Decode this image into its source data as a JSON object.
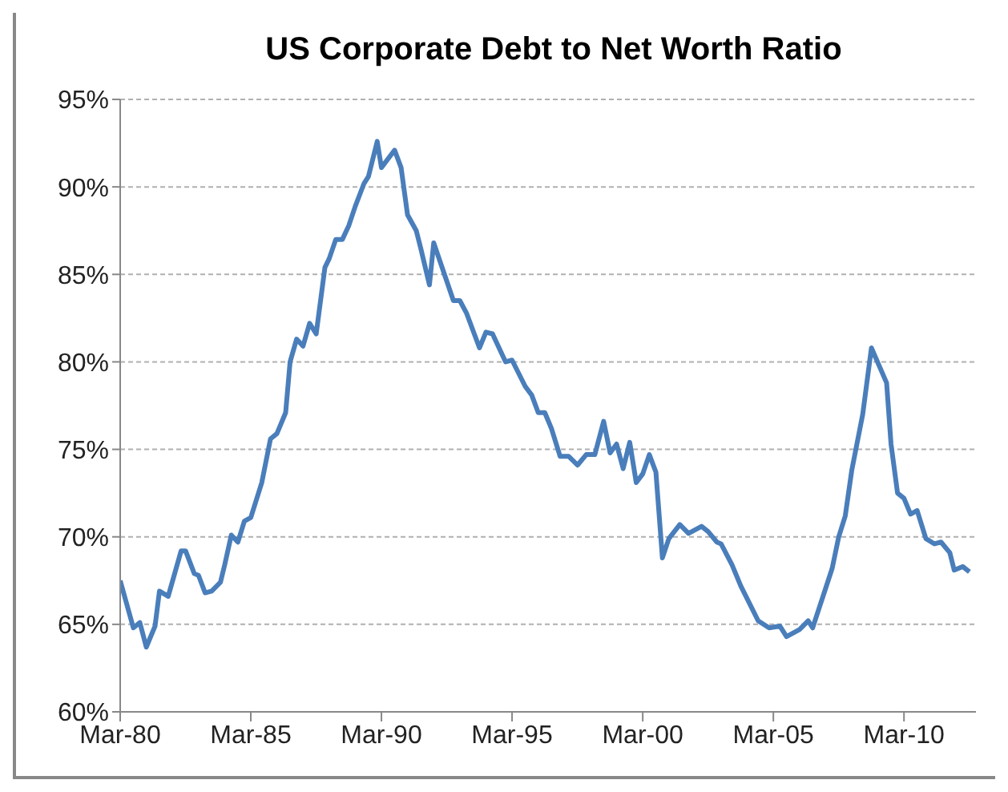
{
  "chart_data": {
    "type": "line",
    "title": "US Corporate Debt to Net Worth Ratio",
    "x": [
      "1980-03",
      "1980-09",
      "1980-12",
      "1981-03",
      "1981-07",
      "1981-09",
      "1982-01",
      "1982-07",
      "1982-09",
      "1983-01",
      "1983-03",
      "1983-06",
      "1983-09",
      "1984-01",
      "1984-03",
      "1984-06",
      "1984-09",
      "1984-12",
      "1985-03",
      "1985-08",
      "1985-12",
      "1986-03",
      "1986-07",
      "1986-09",
      "1986-12",
      "1987-03",
      "1987-06",
      "1987-09",
      "1988-01",
      "1988-03",
      "1988-06",
      "1988-09",
      "1988-12",
      "1989-03",
      "1989-07",
      "1989-09",
      "1990-01",
      "1990-03",
      "1990-09",
      "1990-12",
      "1991-03",
      "1991-07",
      "1991-09",
      "1992-01",
      "1992-03",
      "1992-12",
      "1993-03",
      "1993-06",
      "1993-12",
      "1994-03",
      "1994-06",
      "1994-12",
      "1995-03",
      "1995-09",
      "1995-12",
      "1996-03",
      "1996-06",
      "1996-09",
      "1997-01",
      "1997-05",
      "1997-09",
      "1998-01",
      "1998-05",
      "1998-09",
      "1998-12",
      "1999-03",
      "1999-06",
      "1999-09",
      "1999-12",
      "2000-03",
      "2000-06",
      "2000-09",
      "2000-12",
      "2001-03",
      "2001-08",
      "2001-12",
      "2002-06",
      "2002-09",
      "2003-01",
      "2003-03",
      "2003-08",
      "2003-12",
      "2004-08",
      "2005-01",
      "2005-06",
      "2005-09",
      "2006-03",
      "2006-07",
      "2006-09",
      "2007-02",
      "2007-06",
      "2007-09",
      "2007-12",
      "2008-03",
      "2008-08",
      "2008-12",
      "2009-07",
      "2009-09",
      "2009-12",
      "2010-03",
      "2010-06",
      "2010-09",
      "2011-01",
      "2011-05",
      "2011-08",
      "2011-12",
      "2012-02",
      "2012-06",
      "2012-09"
    ],
    "series": [
      {
        "color": "#4a7ebb",
        "values": [
          67.5,
          64.8,
          65.1,
          63.7,
          64.9,
          66.9,
          66.6,
          69.2,
          69.2,
          67.9,
          67.8,
          66.8,
          66.9,
          67.4,
          68.4,
          70.1,
          69.7,
          70.9,
          71.1,
          73.1,
          75.6,
          75.9,
          77.1,
          80.0,
          81.3,
          80.9,
          82.2,
          81.6,
          85.4,
          85.9,
          87.0,
          87.0,
          87.8,
          88.9,
          90.2,
          90.6,
          92.6,
          91.1,
          92.1,
          91.1,
          88.4,
          87.5,
          86.5,
          84.4,
          86.8,
          83.5,
          83.5,
          82.8,
          80.8,
          81.7,
          81.6,
          80.0,
          80.1,
          78.6,
          78.1,
          77.1,
          77.1,
          76.2,
          74.6,
          74.6,
          74.1,
          74.7,
          74.7,
          76.6,
          74.8,
          75.3,
          73.9,
          75.4,
          73.1,
          73.6,
          74.7,
          73.7,
          68.8,
          69.9,
          70.7,
          70.2,
          70.6,
          70.3,
          69.7,
          69.6,
          68.4,
          67.2,
          65.2,
          64.8,
          64.9,
          64.3,
          64.7,
          65.2,
          64.8,
          66.7,
          68.2,
          70.0,
          71.2,
          73.8,
          77.0,
          80.8,
          78.8,
          75.3,
          72.5,
          72.2,
          71.3,
          71.5,
          69.9,
          69.6,
          69.7,
          69.1,
          68.1,
          68.3,
          68.0
        ]
      }
    ],
    "xlim": [
      "1980-03",
      "2012-12"
    ],
    "xticks": [
      {
        "value": "1980-03",
        "label": "Mar-80"
      },
      {
        "value": "1985-03",
        "label": "Mar-85"
      },
      {
        "value": "1990-03",
        "label": "Mar-90"
      },
      {
        "value": "1995-03",
        "label": "Mar-95"
      },
      {
        "value": "2000-03",
        "label": "Mar-00"
      },
      {
        "value": "2005-03",
        "label": "Mar-05"
      },
      {
        "value": "2010-03",
        "label": "Mar-10"
      }
    ],
    "ylim": [
      60,
      95
    ],
    "yticks": [
      {
        "value": 60,
        "label": "60%"
      },
      {
        "value": 65,
        "label": "65%"
      },
      {
        "value": 70,
        "label": "70%"
      },
      {
        "value": 75,
        "label": "75%"
      },
      {
        "value": 80,
        "label": "80%"
      },
      {
        "value": 85,
        "label": "85%"
      },
      {
        "value": 90,
        "label": "90%"
      },
      {
        "value": 95,
        "label": "95%"
      }
    ],
    "grid": "y",
    "legend": false,
    "marker": "none",
    "line_style": "solid"
  }
}
